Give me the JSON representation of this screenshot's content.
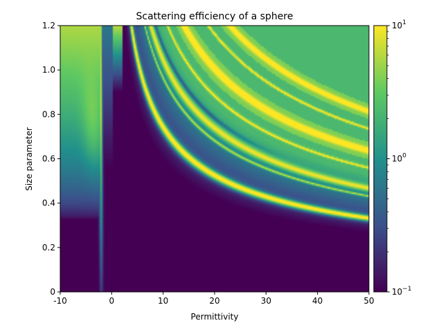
{
  "chart_data": {
    "type": "heatmap",
    "title": "Scattering efficiency of a sphere",
    "xlabel": "Permittivity",
    "ylabel": "Size parameter",
    "xlim": [
      -10,
      50
    ],
    "ylim": [
      0,
      1.2
    ],
    "x_ticks": [
      -10,
      0,
      10,
      20,
      30,
      40,
      50
    ],
    "x_tick_labels": [
      "-10",
      "0",
      "10",
      "20",
      "30",
      "40",
      "50"
    ],
    "y_ticks": [
      0,
      0.2,
      0.4,
      0.6,
      0.8,
      1.0,
      1.2
    ],
    "y_tick_labels": [
      "0",
      "0.2",
      "0.4",
      "0.6",
      "0.8",
      "1.0",
      "1.2"
    ],
    "colorbar": {
      "scale": "log",
      "range": [
        0.1,
        10
      ],
      "colormap": "viridis",
      "ticks": [
        0.1,
        1,
        10
      ],
      "tick_base": "10",
      "tick_exponents": [
        "−1",
        "0",
        "1"
      ]
    },
    "colormap_colors": [
      "#440154",
      "#3b528b",
      "#21918c",
      "#5ec962",
      "#fde725"
    ],
    "grid": false
  }
}
